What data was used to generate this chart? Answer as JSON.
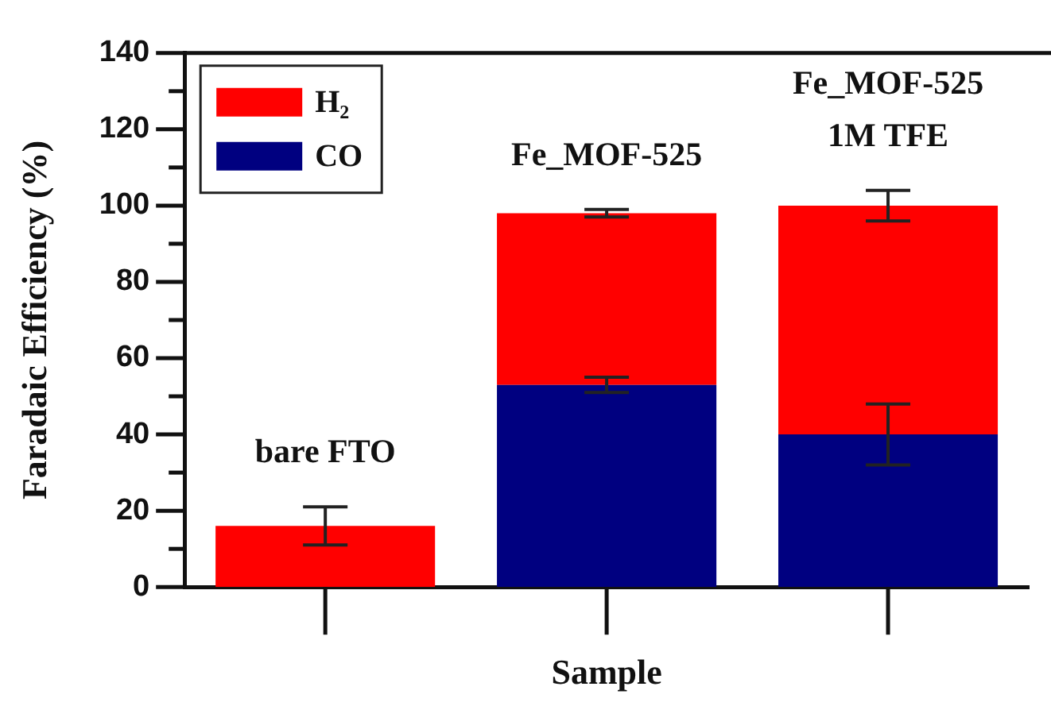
{
  "chart_data": {
    "type": "bar",
    "stacked": true,
    "categories": [
      "bare FTO",
      "Fe_MOF-525",
      "Fe_MOF-525 1M TFE"
    ],
    "xlabel": "Sample",
    "ylabel": "Faradaic Efficiency (%)",
    "ylim": [
      0,
      140
    ],
    "yticks": [
      0,
      {
        "value": 10,
        "label": null
      },
      20,
      {
        "value": 30,
        "label": null
      },
      40,
      {
        "value": 50,
        "label": null
      },
      60,
      {
        "value": 70,
        "label": null
      },
      80,
      {
        "value": 90,
        "label": null
      },
      100,
      {
        "value": 110,
        "label": null
      },
      120,
      {
        "value": 130,
        "label": null
      },
      140
    ],
    "legend": "top left",
    "series": [
      {
        "name": "CO",
        "color": "#000080",
        "values": [
          null,
          53,
          40
        ],
        "errors": [
          null,
          2,
          8
        ]
      },
      {
        "name": "H₂",
        "color": "#ff0000",
        "values": [
          16,
          45,
          60
        ],
        "errors": [
          5,
          1,
          4
        ]
      }
    ]
  }
}
